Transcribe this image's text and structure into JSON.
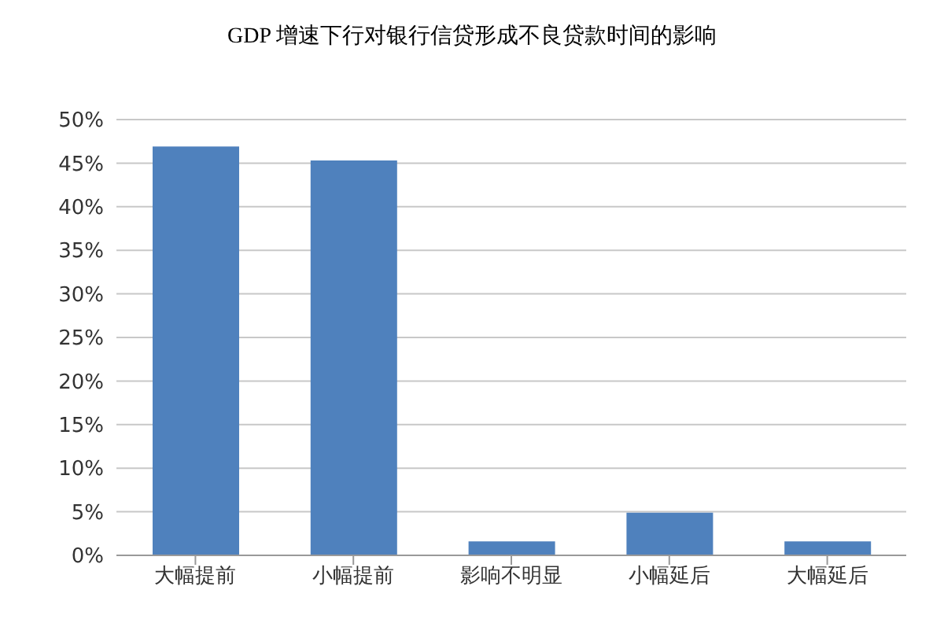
{
  "chart_data": {
    "type": "bar",
    "title": "GDP 增速下行对银行信贷形成不良贷款时间的影响",
    "categories": [
      "大幅提前",
      "小幅提前",
      "影响不明显",
      "小幅延后",
      "大幅延后"
    ],
    "values": [
      46.9,
      45.3,
      1.6,
      4.9,
      1.6
    ],
    "color": "#4f81bd",
    "ylim": [
      0,
      50
    ],
    "yticks": [
      {
        "value": 0,
        "label": "0%"
      },
      {
        "value": 5,
        "label": "5%"
      },
      {
        "value": 10,
        "label": "10%"
      },
      {
        "value": 15,
        "label": "15%"
      },
      {
        "value": 20,
        "label": "20%"
      },
      {
        "value": 25,
        "label": "25%"
      },
      {
        "value": 30,
        "label": "30%"
      },
      {
        "value": 35,
        "label": "35%"
      },
      {
        "value": 40,
        "label": "40%"
      },
      {
        "value": 45,
        "label": "45%"
      },
      {
        "value": 50,
        "label": "50%"
      }
    ],
    "grid": "y"
  }
}
